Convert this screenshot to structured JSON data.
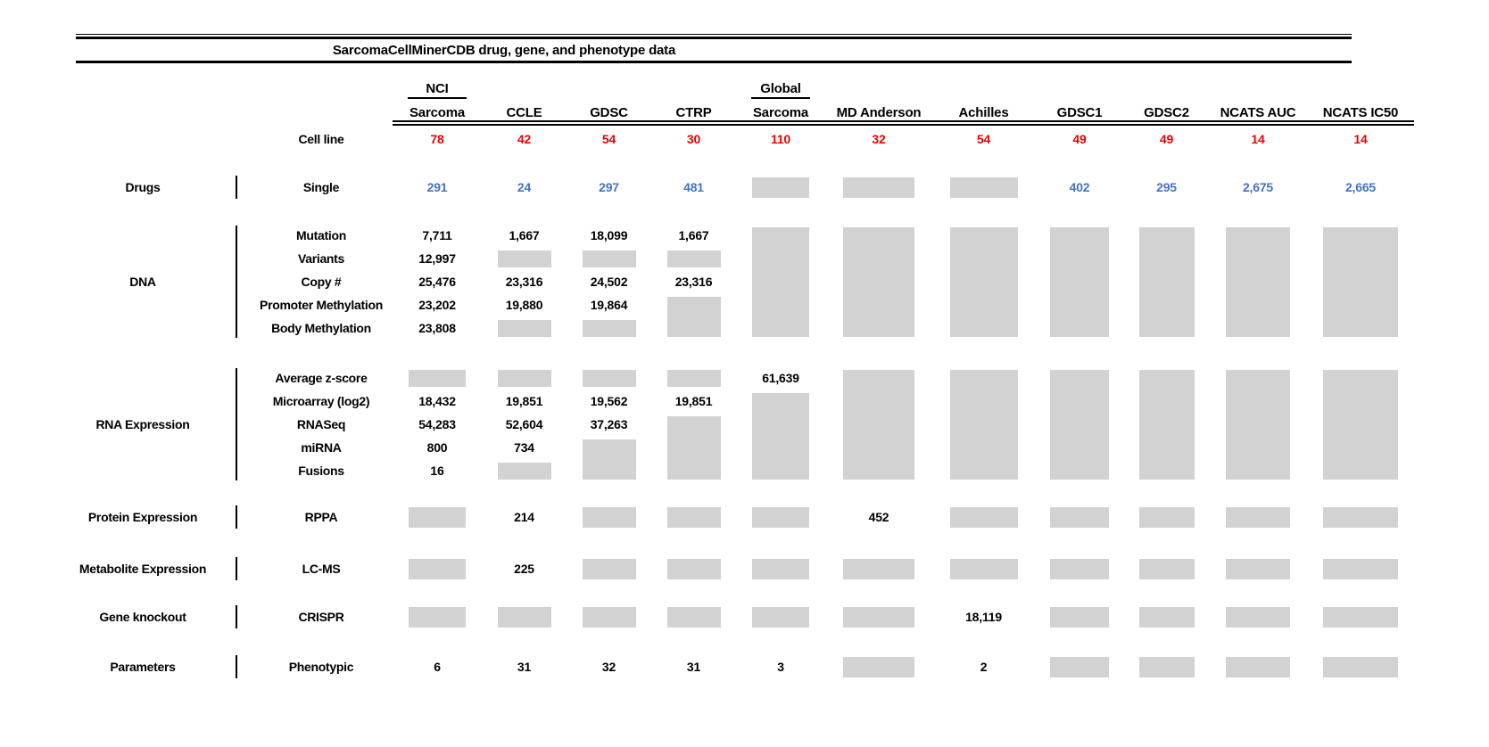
{
  "title": "SarcomaCellMinerCDB drug, gene, and phenotype data",
  "header": {
    "cell_line_label": "Cell line"
  },
  "colors": {
    "cell_line_red": "#ee0000",
    "drug_blue": "#4472c4",
    "no_data_gray": "#d2d2d2"
  },
  "columns": [
    {
      "id": "nci-sarcoma",
      "line1": "NCI",
      "line2": "Sarcoma",
      "cell_lines": "78"
    },
    {
      "id": "ccle",
      "line1": "",
      "line2": "CCLE",
      "cell_lines": "42"
    },
    {
      "id": "gdsc",
      "line1": "",
      "line2": "GDSC",
      "cell_lines": "54"
    },
    {
      "id": "ctrp",
      "line1": "",
      "line2": "CTRP",
      "cell_lines": "30"
    },
    {
      "id": "global-sarcoma",
      "line1": "Global",
      "line2": "Sarcoma",
      "cell_lines": "110"
    },
    {
      "id": "md-anderson",
      "line1": "",
      "line2": "MD Anderson",
      "cell_lines": "32"
    },
    {
      "id": "achilles",
      "line1": "",
      "line2": "Achilles",
      "cell_lines": "54"
    },
    {
      "id": "gdsc1",
      "line1": "",
      "line2": "GDSC1",
      "cell_lines": "49"
    },
    {
      "id": "gdsc2",
      "line1": "",
      "line2": "GDSC2",
      "cell_lines": "49"
    },
    {
      "id": "ncats-auc",
      "line1": "",
      "line2": "NCATS AUC",
      "cell_lines": "14"
    },
    {
      "id": "ncats-ic50",
      "line1": "",
      "line2": "NCATS IC50",
      "cell_lines": "14"
    }
  ],
  "sections": [
    {
      "id": "drugs",
      "group": "Drugs",
      "value_color": "blue",
      "rows": [
        {
          "label": "Single",
          "values": [
            "291",
            "24",
            "297",
            "481",
            null,
            null,
            null,
            "402",
            "295",
            "2,675",
            "2,665"
          ]
        }
      ]
    },
    {
      "id": "dna",
      "group": "DNA",
      "value_color": "black",
      "rows": [
        {
          "label": "Mutation",
          "values": [
            "7,711",
            "1,667",
            "18,099",
            "1,667",
            null,
            null,
            null,
            null,
            null,
            null,
            null
          ]
        },
        {
          "label": "Variants",
          "values": [
            "12,997",
            null,
            null,
            null,
            null,
            null,
            null,
            null,
            null,
            null,
            null
          ]
        },
        {
          "label": "Copy #",
          "values": [
            "25,476",
            "23,316",
            "24,502",
            "23,316",
            null,
            null,
            null,
            null,
            null,
            null,
            null
          ]
        },
        {
          "label": "Promoter Methylation",
          "values": [
            "23,202",
            "19,880",
            "19,864",
            null,
            null,
            null,
            null,
            null,
            null,
            null,
            null
          ]
        },
        {
          "label": "Body Methylation",
          "values": [
            "23,808",
            null,
            null,
            null,
            null,
            null,
            null,
            null,
            null,
            null,
            null
          ]
        }
      ]
    },
    {
      "id": "rna",
      "group": "RNA Expression",
      "value_color": "black",
      "rows": [
        {
          "label": "Average z-score",
          "values": [
            null,
            null,
            null,
            null,
            "61,639",
            null,
            null,
            null,
            null,
            null,
            null
          ]
        },
        {
          "label": "Microarray (log2)",
          "values": [
            "18,432",
            "19,851",
            "19,562",
            "19,851",
            null,
            null,
            null,
            null,
            null,
            null,
            null
          ]
        },
        {
          "label": "RNASeq",
          "values": [
            "54,283",
            "52,604",
            "37,263",
            null,
            null,
            null,
            null,
            null,
            null,
            null,
            null
          ]
        },
        {
          "label": "miRNA",
          "values": [
            "800",
            "734",
            null,
            null,
            null,
            null,
            null,
            null,
            null,
            null,
            null
          ]
        },
        {
          "label": "Fusions",
          "values": [
            "16",
            null,
            null,
            null,
            null,
            null,
            null,
            null,
            null,
            null,
            null
          ]
        }
      ]
    },
    {
      "id": "protein",
      "group": "Protein Expression",
      "value_color": "black",
      "rows": [
        {
          "label": "RPPA",
          "values": [
            null,
            "214",
            null,
            null,
            null,
            "452",
            null,
            null,
            null,
            null,
            null
          ]
        }
      ]
    },
    {
      "id": "metabolite",
      "group": "Metabolite Expression",
      "value_color": "black",
      "rows": [
        {
          "label": "LC-MS",
          "values": [
            null,
            "225",
            null,
            null,
            null,
            null,
            null,
            null,
            null,
            null,
            null
          ]
        }
      ]
    },
    {
      "id": "knockout",
      "group": "Gene knockout",
      "value_color": "black",
      "rows": [
        {
          "label": "CRISPR",
          "values": [
            null,
            null,
            null,
            null,
            null,
            null,
            "18,119",
            null,
            null,
            null,
            null
          ]
        }
      ]
    },
    {
      "id": "parameters",
      "group": "Parameters",
      "value_color": "black",
      "rows": [
        {
          "label": "Phenotypic",
          "values": [
            "6",
            "31",
            "32",
            "31",
            "3",
            null,
            "2",
            null,
            null,
            null,
            null
          ]
        }
      ]
    }
  ]
}
